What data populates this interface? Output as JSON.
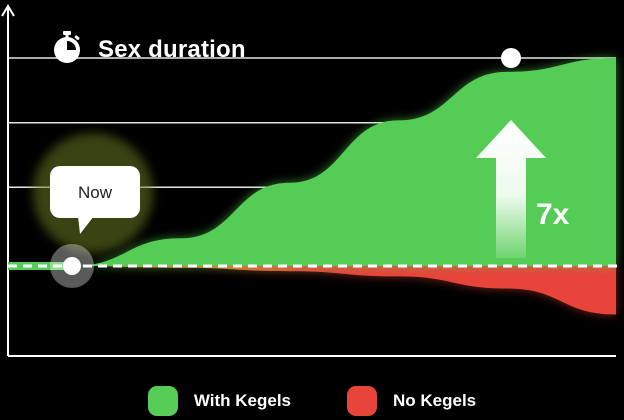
{
  "title": "Sex duration",
  "icon": "stopwatch-icon",
  "callout": {
    "now_label": "Now",
    "multiplier_label": "7x"
  },
  "colors": {
    "with_kegels": "#55cc55",
    "no_kegels": "#e8443a",
    "no_kegels_start": "#f2a21c",
    "baseline": "#ffffff",
    "background": "#000000"
  },
  "legend": {
    "with_kegels": "With Kegels",
    "no_kegels": "No Kegels"
  },
  "chart_data": {
    "type": "area",
    "title": "Sex duration",
    "xlabel": "",
    "ylabel": "",
    "x": [
      0,
      1,
      2,
      3,
      4,
      5
    ],
    "ylim": [
      -1.5,
      8
    ],
    "grid": true,
    "baseline": 1,
    "series": [
      {
        "name": "With Kegels",
        "values": [
          1,
          1.8,
          3.4,
          5.2,
          6.6,
          7
        ]
      },
      {
        "name": "No Kegels",
        "values": [
          1,
          0.95,
          0.85,
          0.7,
          0.35,
          -0.4
        ]
      }
    ],
    "annotations": [
      {
        "text": "Now",
        "x": 0
      },
      {
        "text": "7x",
        "x": 5
      }
    ],
    "legend_position": "bottom"
  }
}
